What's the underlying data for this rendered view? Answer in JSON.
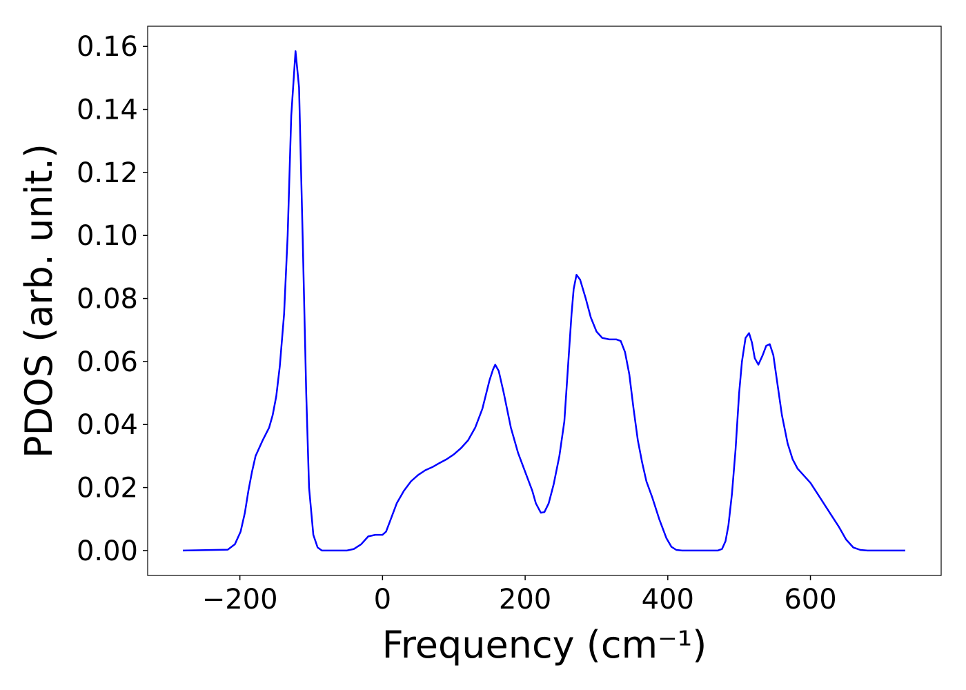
{
  "chart_data": {
    "type": "line",
    "xlabel": "Frequency (cm⁻¹)",
    "ylabel": "PDOS (arb. unit.)",
    "xlim": [
      -329.3,
      783.3
    ],
    "ylim": [
      -0.0079,
      0.1664
    ],
    "xticks": [
      {
        "value": -200,
        "label": "−200"
      },
      0,
      200,
      400,
      600
    ],
    "yticks": [
      {
        "value": 0,
        "label": "0.00"
      },
      {
        "value": 0.02,
        "label": "0.02"
      },
      {
        "value": 0.04,
        "label": "0.04"
      },
      {
        "value": 0.06,
        "label": "0.06"
      },
      {
        "value": 0.08,
        "label": "0.08"
      },
      {
        "value": 0.1,
        "label": "0.10"
      },
      {
        "value": 0.12,
        "label": "0.12"
      },
      {
        "value": 0.14,
        "label": "0.14"
      },
      {
        "value": 0.16,
        "label": "0.16"
      }
    ],
    "grid": false,
    "series": [
      {
        "color": "#0000ff",
        "x": [
          -280,
          -217,
          -207,
          -199,
          -193,
          -188,
          -183,
          -178,
          -168,
          -159,
          -154,
          -149,
          -144,
          -138,
          -133,
          -128,
          -122,
          -117,
          -112,
          -107,
          -103,
          -97,
          -91,
          -85,
          -50,
          -40,
          -30,
          -20,
          -10,
          0,
          5,
          10,
          20,
          30,
          40,
          50,
          60,
          70,
          80,
          90,
          100,
          110,
          120,
          130,
          140,
          150,
          155,
          158,
          163,
          170,
          180,
          190,
          200,
          210,
          215,
          222,
          227,
          233,
          240,
          248,
          255,
          260,
          265,
          268,
          272,
          277,
          285,
          292,
          300,
          308,
          318,
          328,
          334,
          340,
          346,
          352,
          358,
          364,
          370,
          378,
          388,
          398,
          405,
          412,
          420,
          430,
          470,
          476,
          481,
          485,
          490,
          495,
          500,
          504,
          509,
          514,
          518,
          522,
          527,
          533,
          538,
          543,
          548,
          553,
          560,
          568,
          575,
          582,
          590,
          600,
          610,
          620,
          630,
          640,
          650,
          660,
          670,
          680,
          733
        ],
        "values": [
          0,
          0.0003,
          0.002,
          0.006,
          0.012,
          0.019,
          0.025,
          0.03,
          0.035,
          0.039,
          0.043,
          0.049,
          0.0585,
          0.075,
          0.1,
          0.138,
          0.1585,
          0.147,
          0.1,
          0.05,
          0.02,
          0.005,
          0.001,
          0,
          0,
          0.0005,
          0.002,
          0.0045,
          0.005,
          0.005,
          0.006,
          0.009,
          0.015,
          0.019,
          0.022,
          0.024,
          0.0255,
          0.0265,
          0.0278,
          0.029,
          0.0305,
          0.0325,
          0.035,
          0.039,
          0.045,
          0.054,
          0.0575,
          0.059,
          0.057,
          0.05,
          0.039,
          0.031,
          0.025,
          0.019,
          0.015,
          0.012,
          0.0122,
          0.015,
          0.021,
          0.03,
          0.041,
          0.058,
          0.075,
          0.083,
          0.0875,
          0.086,
          0.08,
          0.074,
          0.0695,
          0.0675,
          0.067,
          0.067,
          0.0665,
          0.063,
          0.056,
          0.045,
          0.035,
          0.028,
          0.022,
          0.017,
          0.01,
          0.004,
          0.0012,
          0.0002,
          0,
          0,
          0,
          0.0005,
          0.003,
          0.008,
          0.018,
          0.032,
          0.05,
          0.06,
          0.0675,
          0.069,
          0.066,
          0.061,
          0.059,
          0.062,
          0.065,
          0.0655,
          0.062,
          0.054,
          0.043,
          0.034,
          0.029,
          0.026,
          0.024,
          0.0215,
          0.018,
          0.0145,
          0.011,
          0.0075,
          0.0035,
          0.001,
          0.0002,
          0,
          0
        ]
      }
    ]
  }
}
